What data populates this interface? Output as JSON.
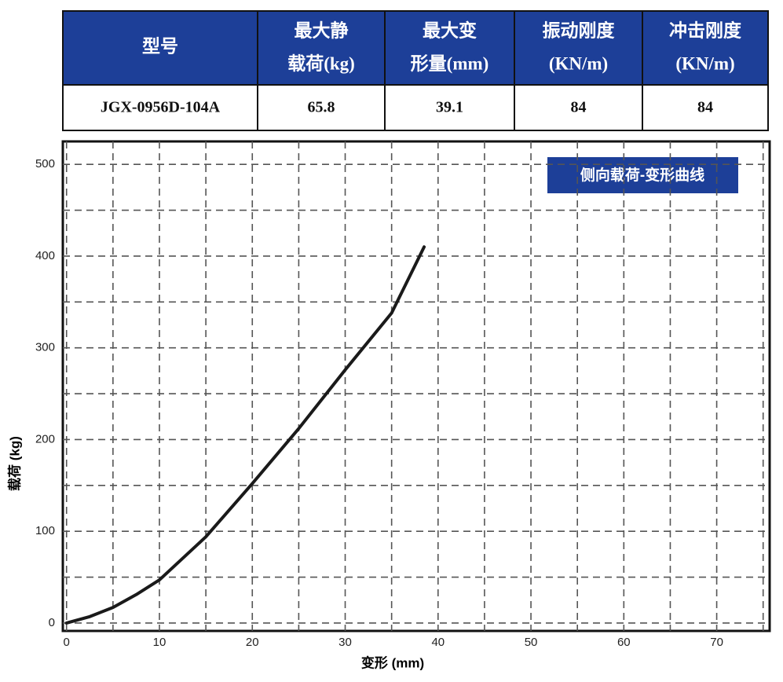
{
  "table": {
    "header": [
      [
        "型号"
      ],
      [
        "最大静",
        "载荷(kg)"
      ],
      [
        "最大变",
        "形量(mm)"
      ],
      [
        "振动刚度",
        "(KN/m)"
      ],
      [
        "冲击刚度",
        "(KN/m)"
      ]
    ],
    "rows": [
      [
        "JGX-0956D-104A",
        "65.8",
        "39.1",
        "84",
        "84"
      ]
    ]
  },
  "chart_data": {
    "type": "line",
    "title": "侧向载荷-变形曲线",
    "xlabel": "变形 (mm)",
    "ylabel": "载荷 (kg)",
    "x": [
      0,
      2.5,
      5,
      7.5,
      10,
      15,
      20,
      25,
      30,
      35,
      38.5
    ],
    "series": [
      {
        "name": "载荷",
        "color": "#1a1a1a",
        "values": [
          0,
          7,
          17,
          31,
          47,
          94,
          152,
          212,
          276,
          338,
          410
        ]
      }
    ],
    "xlim": [
      -0.4,
      75.7
    ],
    "ylim": [
      -8.6,
      525
    ],
    "xticks": [
      0,
      10,
      20,
      30,
      40,
      50,
      60,
      70
    ],
    "yticks": [
      0,
      100,
      200,
      300,
      400,
      500
    ],
    "xminor": [
      5,
      15,
      25,
      35,
      45,
      55,
      65,
      75
    ],
    "yminor": [
      50,
      150,
      250,
      350,
      450
    ],
    "grid": true
  }
}
